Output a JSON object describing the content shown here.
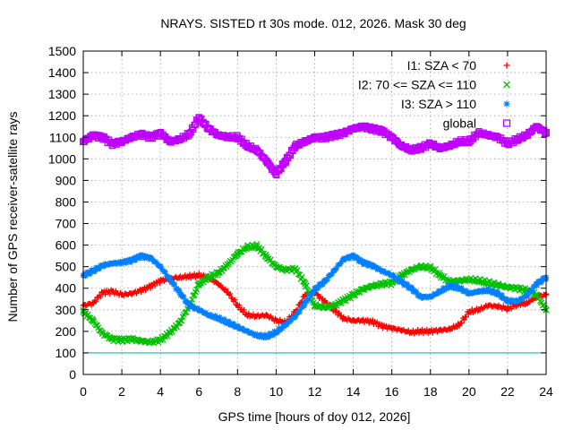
{
  "chart_data": {
    "type": "scatter",
    "title": "NRAYS. SISTED rt 30s mode. 012, 2026. Mask 30 deg",
    "xlabel": "GPS time [hours of doy 012, 2026]",
    "ylabel": "Number of GPS receiver-satellite rays",
    "xlim": [
      0,
      24
    ],
    "ylim": [
      0,
      1500
    ],
    "x_ticks": [
      "0",
      "2",
      "4",
      "6",
      "8",
      "10",
      "12",
      "14",
      "16",
      "18",
      "20",
      "22",
      "24"
    ],
    "y_ticks": [
      "0",
      "100",
      "200",
      "300",
      "400",
      "500",
      "600",
      "700",
      "800",
      "900",
      "1000",
      "1100",
      "1200",
      "1300",
      "1400",
      "1500"
    ],
    "grid": true,
    "legend_position": "top-right",
    "reference_line": {
      "y": 100,
      "color": "#00c0c0"
    },
    "series": [
      {
        "name": "I1: SZA < 70",
        "marker": "+",
        "color": "#ff0000",
        "x": [
          0,
          0.5,
          1,
          1.5,
          2,
          2.5,
          3,
          3.5,
          4,
          4.5,
          5,
          5.5,
          6,
          6.5,
          7,
          7.5,
          8,
          8.5,
          9,
          9.5,
          10,
          10.5,
          11,
          11.5,
          12,
          12.5,
          13,
          13.5,
          14,
          14.5,
          15,
          15.5,
          16,
          16.5,
          17,
          17.5,
          18,
          18.5,
          19,
          19.5,
          20,
          20.5,
          21,
          21.5,
          22,
          22.5,
          23,
          23.5,
          24
        ],
        "y": [
          320,
          330,
          380,
          385,
          370,
          375,
          390,
          410,
          435,
          445,
          450,
          455,
          460,
          450,
          420,
          380,
          320,
          275,
          270,
          275,
          250,
          240,
          290,
          370,
          380,
          340,
          300,
          260,
          250,
          250,
          245,
          225,
          215,
          205,
          195,
          200,
          200,
          205,
          210,
          230,
          290,
          300,
          320,
          315,
          305,
          325,
          330,
          360,
          370
        ]
      },
      {
        "name": "I2: 70 <= SZA <= 110",
        "marker": "x",
        "color": "#00c000",
        "x": [
          0,
          0.5,
          1,
          1.5,
          2,
          2.5,
          3,
          3.5,
          4,
          4.5,
          5,
          5.5,
          6,
          6.5,
          7,
          7.5,
          8,
          8.5,
          9,
          9.5,
          10,
          10.5,
          11,
          11.5,
          12,
          12.5,
          13,
          13.5,
          14,
          14.5,
          15,
          15.5,
          16,
          16.5,
          17,
          17.5,
          18,
          18.5,
          19,
          19.5,
          20,
          20.5,
          21,
          21.5,
          22,
          22.5,
          23,
          23.5,
          24
        ],
        "y": [
          290,
          250,
          190,
          165,
          160,
          165,
          155,
          150,
          160,
          195,
          240,
          320,
          420,
          450,
          470,
          510,
          560,
          590,
          595,
          545,
          500,
          485,
          490,
          420,
          320,
          310,
          320,
          345,
          370,
          395,
          410,
          420,
          425,
          460,
          485,
          500,
          495,
          460,
          430,
          435,
          440,
          435,
          425,
          415,
          405,
          400,
          390,
          370,
          300
        ]
      },
      {
        "name": "I3: SZA > 110",
        "marker": "*",
        "color": "#0080ff",
        "x": [
          0,
          0.5,
          1,
          1.5,
          2,
          2.5,
          3,
          3.5,
          4,
          4.5,
          5,
          5.5,
          6,
          6.5,
          7,
          7.5,
          8,
          8.5,
          9,
          9.5,
          10,
          10.5,
          11,
          11.5,
          12,
          12.5,
          13,
          13.5,
          14,
          14.5,
          15,
          15.5,
          16,
          16.5,
          17,
          17.5,
          18,
          18.5,
          19,
          19.5,
          20,
          20.5,
          21,
          21.5,
          22,
          22.5,
          23,
          23.5,
          24
        ],
        "y": [
          460,
          480,
          505,
          515,
          520,
          530,
          550,
          540,
          500,
          440,
          380,
          320,
          300,
          275,
          260,
          240,
          220,
          200,
          180,
          175,
          195,
          230,
          270,
          330,
          395,
          430,
          480,
          535,
          550,
          520,
          505,
          480,
          460,
          430,
          400,
          360,
          360,
          385,
          410,
          400,
          375,
          385,
          390,
          375,
          340,
          340,
          365,
          420,
          450
        ]
      },
      {
        "name": "global",
        "marker": "square",
        "color": "#c000ff",
        "x": [
          0,
          0.5,
          1,
          1.5,
          2,
          2.5,
          3,
          3.5,
          4,
          4.5,
          5,
          5.5,
          6,
          6.5,
          7,
          7.5,
          8,
          8.5,
          9,
          9.5,
          10,
          10.5,
          11,
          11.5,
          12,
          12.5,
          13,
          13.5,
          14,
          14.5,
          15,
          15.5,
          16,
          16.5,
          17,
          17.5,
          18,
          18.5,
          19,
          19.5,
          20,
          20.5,
          21,
          21.5,
          22,
          22.5,
          23,
          23.5,
          24
        ],
        "y": [
          1080,
          1110,
          1100,
          1070,
          1080,
          1100,
          1115,
          1100,
          1120,
          1080,
          1090,
          1115,
          1190,
          1140,
          1110,
          1100,
          1100,
          1060,
          1040,
          990,
          930,
          990,
          1060,
          1080,
          1100,
          1100,
          1110,
          1120,
          1140,
          1150,
          1140,
          1130,
          1100,
          1060,
          1040,
          1050,
          1070,
          1050,
          1060,
          1080,
          1080,
          1120,
          1110,
          1100,
          1070,
          1090,
          1110,
          1150,
          1120
        ]
      }
    ]
  }
}
